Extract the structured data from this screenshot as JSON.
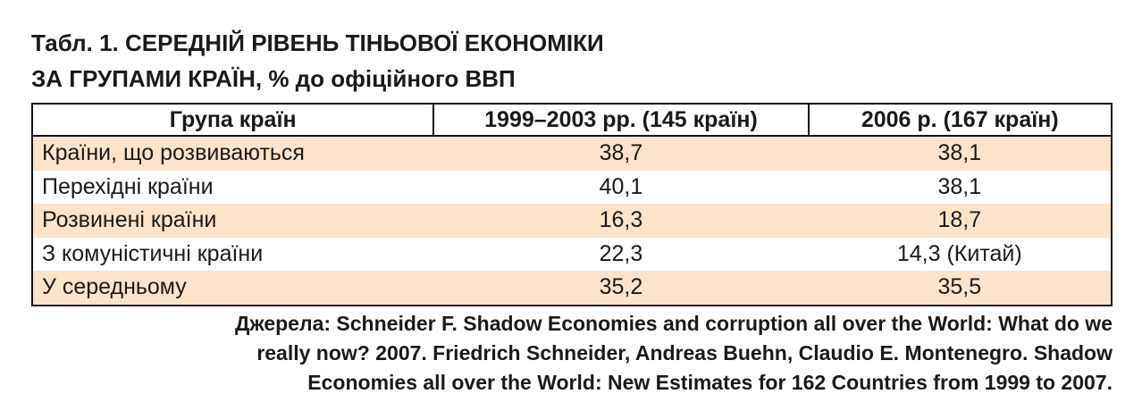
{
  "title": {
    "lines": [
      "Табл. 1. СЕРЕДНІЙ РІВЕНЬ ТІНЬОВОЇ ЕКОНОМІКИ",
      "ЗА ГРУПАМИ КРАЇН, % до офіційного ВВП"
    ]
  },
  "table": {
    "header": [
      "Група країн",
      "1999–2003 рр. (145 країн)",
      "2006 р. (167 країн)"
    ],
    "rows": [
      [
        "Країни, що розвиваються",
        "38,7",
        "38,1"
      ],
      [
        "Перехідні країни",
        "40,1",
        "38,1"
      ],
      [
        "Розвинені країни",
        "16,3",
        "18,7"
      ],
      [
        "З комуністичні країни",
        "22,3",
        "14,3 (Китай)"
      ],
      [
        "У середньому",
        "35,2",
        "35,5"
      ]
    ]
  },
  "source": {
    "lines": [
      "Джерела: Schneider F. Shadow Economies and corruption all over the World: What do we",
      "really now? 2007. Friedrich Schneider, Andreas Buehn, Claudio E. Montenegro. Shadow",
      "Economies all over the World: New Estimates for 162 Countries from 1999 to 2007."
    ]
  }
}
